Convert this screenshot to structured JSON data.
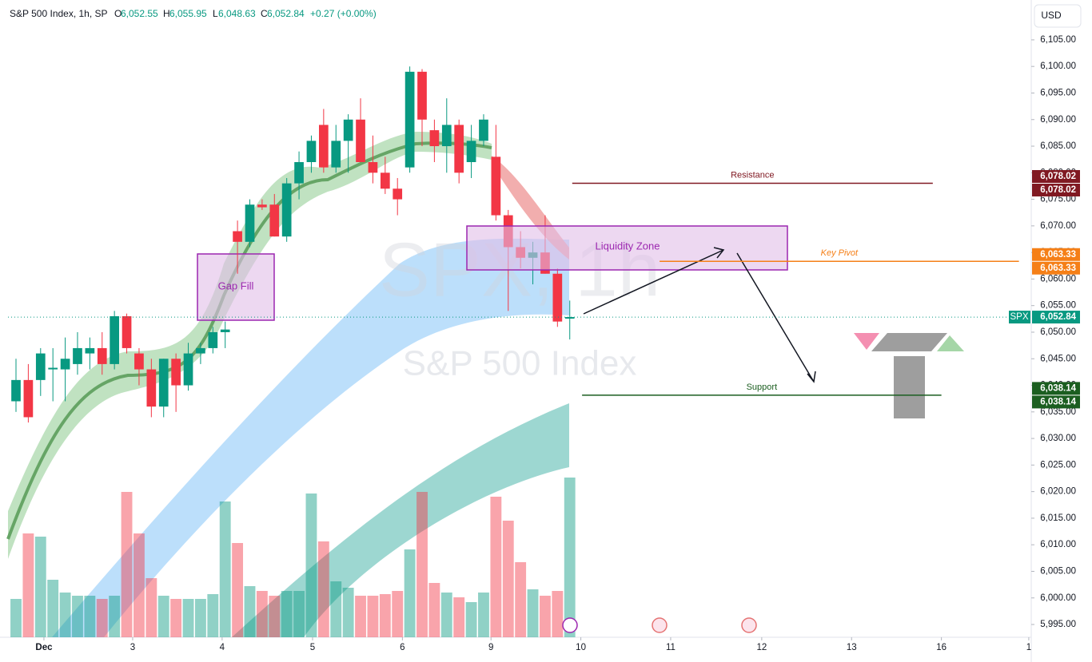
{
  "header": {
    "symbol": "S&P 500 Index, 1h, SP",
    "o_key": "O",
    "o": "6,052.55",
    "h_key": "H",
    "h": "6,055.95",
    "l_key": "L",
    "l": "6,048.63",
    "c_key": "C",
    "c": "6,052.84",
    "change": "+0.27 (+0.00%)",
    "currency": "USD"
  },
  "watermark": {
    "ticker": "SPX, 1h",
    "name": "S&P 500 Index"
  },
  "chart_data": {
    "type": "candlestick",
    "ylim": [
      5992.6,
      6112.5
    ],
    "yticks": [
      {
        "value": 6105,
        "label": "6,105.00"
      },
      {
        "value": 6100,
        "label": "6,100.00"
      },
      {
        "value": 6095,
        "label": "6,095.00"
      },
      {
        "value": 6090,
        "label": "6,090.00"
      },
      {
        "value": 6085,
        "label": "6,085.00"
      },
      {
        "value": 6080,
        "label": "6,080.00"
      },
      {
        "value": 6075,
        "label": "6,075.00"
      },
      {
        "value": 6070,
        "label": "6,070.00"
      },
      {
        "value": 6065,
        "label": "6,065.00"
      },
      {
        "value": 6060,
        "label": "6,060.00"
      },
      {
        "value": 6055,
        "label": "6,055.00"
      },
      {
        "value": 6050,
        "label": "6,050.00"
      },
      {
        "value": 6045,
        "label": "6,045.00"
      },
      {
        "value": 6040,
        "label": "6,040.00"
      },
      {
        "value": 6035,
        "label": "6,035.00"
      },
      {
        "value": 6030,
        "label": "6,030.00"
      },
      {
        "value": 6025,
        "label": "6,025.00"
      },
      {
        "value": 6020,
        "label": "6,020.00"
      },
      {
        "value": 6015,
        "label": "6,015.00"
      },
      {
        "value": 6010,
        "label": "6,010.00"
      },
      {
        "value": 6005,
        "label": "6,005.00"
      },
      {
        "value": 6000,
        "label": "6,000.00"
      },
      {
        "value": 5995,
        "label": "5,995.00"
      }
    ],
    "xlim": [
      -0.65,
      82.5
    ],
    "xticks": [
      {
        "value": 2.27,
        "label": "Dec"
      },
      {
        "value": 9.48,
        "label": "3"
      },
      {
        "value": 16.75,
        "label": "4"
      },
      {
        "value": 24.1,
        "label": "5"
      },
      {
        "value": 31.4,
        "label": "6"
      },
      {
        "value": 38.6,
        "label": "9"
      },
      {
        "value": 45.9,
        "label": "10"
      },
      {
        "value": 53.2,
        "label": "11"
      },
      {
        "value": 60.6,
        "label": "12"
      },
      {
        "value": 67.9,
        "label": "13"
      },
      {
        "value": 75.2,
        "label": "16"
      },
      {
        "value": 82.3,
        "label": "1"
      }
    ],
    "up_color": "#089981",
    "down_color": "#f23645",
    "candles": [
      [
        6037,
        6045,
        6035,
        6041
      ],
      [
        6041,
        6044,
        6033,
        6034
      ],
      [
        6041,
        6047,
        6038,
        6046
      ],
      [
        6043,
        6047,
        6037,
        6043.3
      ],
      [
        6043,
        6049,
        6037,
        6045
      ],
      [
        6044,
        6050,
        6042,
        6047
      ],
      [
        6046,
        6049,
        6043,
        6047
      ],
      [
        6047,
        6050,
        6042,
        6044
      ],
      [
        6044,
        6054,
        6043,
        6053
      ],
      [
        6053,
        6053.5,
        6046,
        6047
      ],
      [
        6046,
        6047,
        6040,
        6043
      ],
      [
        6043,
        6045,
        6034,
        6036
      ],
      [
        6036,
        6045,
        6034,
        6045
      ],
      [
        6045,
        6046,
        6035,
        6040
      ],
      [
        6040,
        6048,
        6039,
        6046
      ],
      [
        6046,
        6048,
        6044,
        6047
      ],
      [
        6047,
        6051,
        6046,
        6050
      ],
      [
        6050,
        6052,
        6047,
        6050.5
      ],
      [
        6069,
        6071,
        6061,
        6067
      ],
      [
        6067,
        6075,
        6066,
        6074
      ],
      [
        6074,
        6075,
        6073,
        6073.5
      ],
      [
        6074,
        6076,
        6068,
        6068
      ],
      [
        6068,
        6079,
        6067,
        6078
      ],
      [
        6078,
        6084,
        6075,
        6082
      ],
      [
        6082,
        6087,
        6080,
        6086
      ],
      [
        6089,
        6092,
        6080,
        6081
      ],
      [
        6081,
        6089,
        6080,
        6086
      ],
      [
        6086,
        6091,
        6080,
        6090
      ],
      [
        6090,
        6094,
        6082,
        6082
      ],
      [
        6082,
        6087,
        6078,
        6080
      ],
      [
        6080,
        6083,
        6076,
        6077
      ],
      [
        6077,
        6079,
        6072,
        6075
      ],
      [
        6081,
        6100,
        6080,
        6099
      ],
      [
        6099,
        6099.5,
        6085,
        6090
      ],
      [
        6088,
        6090,
        6082,
        6085
      ],
      [
        6085,
        6094,
        6080,
        6089
      ],
      [
        6089,
        6090,
        6078,
        6080
      ],
      [
        6082,
        6089,
        6079,
        6086
      ],
      [
        6086,
        6091,
        6085,
        6090
      ],
      [
        6083,
        6089,
        6071,
        6072
      ],
      [
        6072,
        6073,
        6054,
        6066
      ],
      [
        6066,
        6069,
        6062,
        6064
      ],
      [
        6064,
        6067,
        6059,
        6065
      ],
      [
        6065,
        6072,
        6061,
        6061
      ],
      [
        6061,
        6062,
        6051,
        6052
      ],
      [
        6052.55,
        6055.95,
        6048.63,
        6052.84
      ]
    ],
    "volume_lim": [
      0,
      100
    ],
    "volumes": [
      24,
      65,
      63,
      36,
      28,
      26,
      26,
      24,
      26,
      91,
      65,
      37,
      26,
      24,
      24,
      24,
      27,
      85,
      59,
      32,
      29,
      26,
      29,
      29,
      90,
      60,
      35,
      31,
      26,
      26,
      27,
      29,
      55,
      91,
      34,
      28,
      25,
      22,
      28,
      88,
      73,
      47,
      30,
      26,
      29,
      100
    ],
    "last_label": {
      "ticker": "SPX",
      "value": "6,052.84"
    },
    "levels": [
      {
        "name": "Resistance",
        "value": 6078.02,
        "label": "6,078.02",
        "color": "#801922",
        "from": 45.2,
        "to": 74.5
      },
      {
        "name": "Key Pivot",
        "value": 6063.33,
        "label": "6,063.33",
        "color": "#f57f17",
        "from": 52.3,
        "to": 81.5
      },
      {
        "name": "Support",
        "value": 6038.14,
        "label": "6,038.14",
        "color": "#1b5e20",
        "from": 46.0,
        "to": 75.2
      }
    ],
    "zones": [
      {
        "name": "Gap Fill"
      },
      {
        "name": "Liquidity Zone"
      }
    ]
  }
}
